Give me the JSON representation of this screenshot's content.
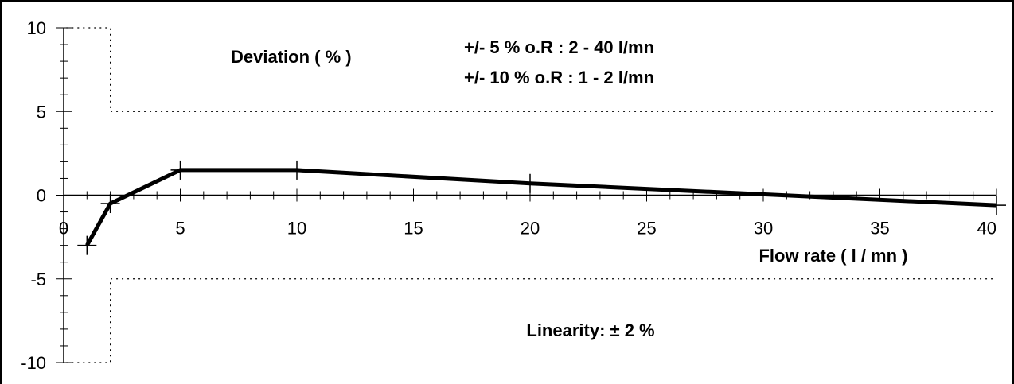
{
  "chart_data": {
    "type": "line",
    "title": "",
    "ylabel": "Deviation ( % )",
    "xlabel": "Flow rate ( l / mn )",
    "xlim": [
      0,
      40
    ],
    "ylim": [
      -10,
      10
    ],
    "x_ticks": [
      "0",
      "5",
      "10",
      "15",
      "20",
      "25",
      "30",
      "35",
      "40"
    ],
    "y_ticks": [
      "10",
      "5",
      "0",
      "-5",
      "-10"
    ],
    "series": [
      {
        "x": [
          1,
          2,
          5,
          10,
          20,
          40
        ],
        "y": [
          -3,
          -0.5,
          1.5,
          1.5,
          0.7,
          -0.6
        ]
      }
    ],
    "tolerance_bands": [
      {
        "x_from": 1,
        "x_to": 2,
        "upper": 10,
        "lower": -10
      },
      {
        "x_from": 2,
        "x_to": 40,
        "upper": 5,
        "lower": -5
      }
    ],
    "annotations": {
      "spec_line1": "+/- 5 % o.R  :  2 - 40 l/mn",
      "spec_line2": "+/- 10 % o.R  :  1 - 2 l/mn",
      "linearity": "Linearity: ± 2 %"
    },
    "grid": false,
    "legend": "none",
    "line_color": "#000000"
  }
}
